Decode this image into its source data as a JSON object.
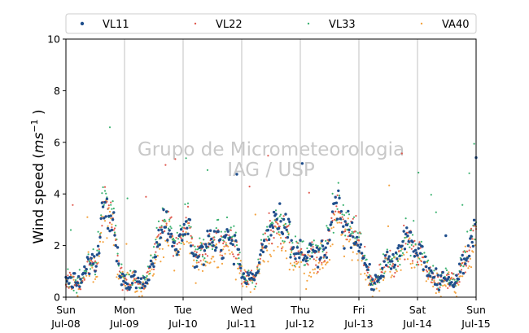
{
  "chart_data": {
    "type": "scatter",
    "title": "",
    "ylabel": "Wind speed (ms⁻¹ )",
    "ylabel_main": "Wind speed (",
    "ylabel_unit_base": "ms",
    "ylabel_unit_exp": "−1",
    "ylabel_close": " )",
    "xlabel": "",
    "ylim": [
      0,
      10
    ],
    "yticks": [
      "0",
      "2",
      "4",
      "6",
      "8",
      "10"
    ],
    "xlim": [
      "2018-07-08",
      "2018-07-15"
    ],
    "xticks": [
      {
        "day": "Sun",
        "date": "Jul-08"
      },
      {
        "day": "Mon",
        "date": "Jul-09"
      },
      {
        "day": "Tue",
        "date": "Jul-10"
      },
      {
        "day": "Wed",
        "date": "Jul-11"
      },
      {
        "day": "Thu",
        "date": "Jul-12"
      },
      {
        "day": "Fri",
        "date": "Jul-13"
      },
      {
        "day": "Sat",
        "date": "Jul-14"
      },
      {
        "day": "Sun",
        "date": "Jul-15"
      }
    ],
    "grid": "vertical lines at day ticks",
    "legend_position": "top",
    "watermark": [
      "Grupo de Micrometeorologia",
      "IAG / USP"
    ],
    "series": [
      {
        "name": "VL11",
        "color": "#1f4e8c",
        "marker": "dot-large"
      },
      {
        "name": "VL22",
        "color": "#e05a4f",
        "marker": "dot-small"
      },
      {
        "name": "VL33",
        "color": "#3cb371",
        "marker": "dot-small"
      },
      {
        "name": "VA40",
        "color": "#f4a340",
        "marker": "dot-small"
      }
    ],
    "hourly_mean": [
      0.6,
      0.6,
      0.7,
      0.6,
      0.6,
      0.5,
      0.6,
      0.8,
      1.0,
      1.3,
      1.4,
      1.3,
      1.2,
      1.6,
      2.6,
      3.4,
      3.8,
      3.6,
      3.3,
      3.1,
      2.8,
      1.6,
      1.0,
      0.8,
      0.6,
      0.5,
      0.5,
      0.6,
      0.8,
      0.6,
      0.5,
      0.6,
      0.5,
      0.7,
      1.0,
      1.2,
      1.6,
      2.0,
      2.3,
      2.6,
      2.8,
      2.9,
      2.8,
      2.5,
      2.2,
      2.0,
      2.1,
      2.2,
      2.4,
      2.7,
      2.9,
      2.3,
      1.8,
      1.4,
      1.6,
      1.9,
      1.7,
      1.8,
      2.1,
      2.2,
      2.0,
      2.3,
      2.4,
      2.2,
      2.1,
      2.3,
      2.5,
      2.4,
      2.2,
      2.0,
      1.8,
      1.5,
      0.9,
      0.7,
      0.6,
      0.8,
      0.9,
      0.7,
      0.8,
      1.3,
      1.8,
      2.0,
      2.2,
      2.4,
      2.6,
      2.9,
      3.0,
      2.8,
      2.6,
      2.5,
      2.7,
      2.6,
      2.0,
      1.7,
      1.6,
      1.8,
      1.9,
      1.6,
      1.4,
      1.5,
      1.8,
      1.9,
      1.7,
      1.6,
      1.5,
      1.8,
      1.9,
      2.0,
      2.5,
      2.9,
      3.2,
      3.6,
      3.3,
      3.0,
      2.7,
      2.9,
      2.6,
      2.5,
      2.4,
      2.3,
      2.1,
      1.9,
      1.5,
      1.2,
      0.9,
      0.6,
      0.5,
      0.6,
      0.7,
      0.8,
      1.2,
      1.5,
      1.4,
      1.3,
      1.2,
      1.4,
      1.6,
      1.8,
      2.0,
      2.3,
      2.5,
      2.3,
      2.1,
      1.7,
      1.5,
      1.9,
      1.6,
      1.4,
      1.1,
      0.9,
      0.8,
      0.7,
      0.6,
      0.5,
      0.6,
      0.8,
      0.7,
      0.6,
      0.7,
      0.6,
      0.7,
      0.9,
      1.2,
      1.4,
      1.6,
      1.8,
      2.2,
      2.6,
      2.4,
      2.0,
      1.5,
      1.2,
      1.0,
      0.8,
      0.8,
      0.7,
      0.8
    ]
  }
}
